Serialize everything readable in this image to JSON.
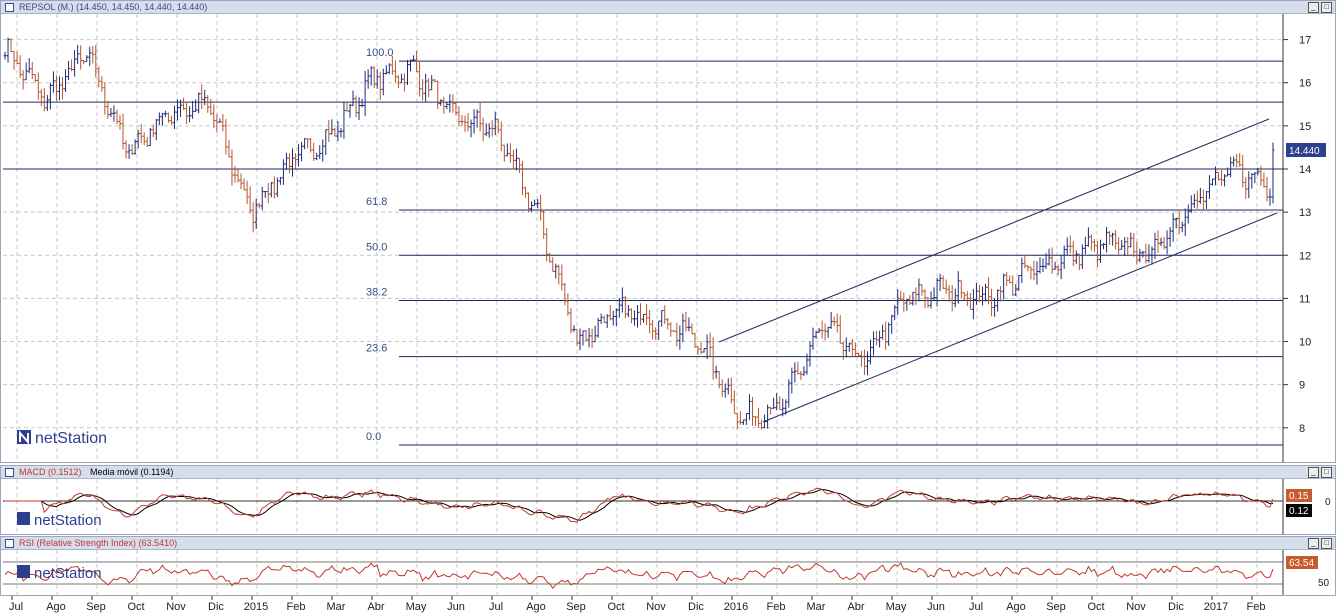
{
  "main_panel": {
    "title": "REPSOL (M.) (14.450, 14.450, 14.440, 14.440)",
    "last_price_label": "14.440",
    "watermark": "netStation",
    "y_ticks": [
      "17",
      "16",
      "15",
      "14",
      "13",
      "12",
      "11",
      "10",
      "9",
      "8"
    ],
    "fib_labels": [
      "100.0",
      "61.8",
      "50.0",
      "38.2",
      "23.6",
      "0.0"
    ]
  },
  "macd_panel": {
    "title_prefix": "MACD (0.1512)",
    "title_suffix": "Media móvil (0.1194)",
    "value_macd": "0.15",
    "value_signal": "0.12",
    "y_tick": "0",
    "watermark": "netStation"
  },
  "rsi_panel": {
    "title": "RSI (Relative Strength Index) (63.5410)",
    "value": "63.54",
    "y_tick": "50",
    "watermark": "netStation"
  },
  "x_axis": {
    "labels": [
      "Jul",
      "Ago",
      "Sep",
      "Oct",
      "Nov",
      "Dic",
      "2015",
      "Feb",
      "Mar",
      "Abr",
      "May",
      "Jun",
      "Jul",
      "Ago",
      "Sep",
      "Oct",
      "Nov",
      "Dic",
      "2016",
      "Feb",
      "Mar",
      "Abr",
      "May",
      "Jun",
      "Jul",
      "Ago",
      "Sep",
      "Oct",
      "Nov",
      "Dic",
      "2017",
      "Feb"
    ]
  },
  "colors": {
    "background": "#ffffff",
    "grid": "#c8c8c8",
    "candle": "#1f2a7a",
    "fib_line": "#1f2a5a",
    "macd_line": "#c0392b",
    "signal_line": "#000000",
    "rsi_line": "#c0392b",
    "price_tag": "#2e3f8f",
    "title_bar": "#d6ddeb"
  },
  "chart_data": [
    {
      "type": "line",
      "title": "REPSOL (M.) (14.450, 14.450, 14.440, 14.440)",
      "xlabel": "",
      "ylabel": "",
      "ylim": [
        7.3,
        17.5
      ],
      "x": [
        "Jul",
        "Ago",
        "Sep",
        "Oct",
        "Nov",
        "Dic",
        "2015",
        "Feb",
        "Mar",
        "Abr",
        "May",
        "Jun",
        "Jul",
        "Ago",
        "Sep",
        "Oct",
        "Nov",
        "Dic",
        "2016",
        "Feb",
        "Mar",
        "Abr",
        "May",
        "Jun",
        "Jul",
        "Ago",
        "Sep",
        "Oct",
        "Nov",
        "Dic",
        "2017",
        "Feb"
      ],
      "series": [
        {
          "values": [
            16.8,
            15.6,
            16.7,
            14.4,
            15.3,
            15.5,
            13.0,
            14.2,
            14.8,
            16.1,
            16.3,
            15.2,
            14.9,
            13.0,
            10.0,
            10.7,
            10.5,
            10.0,
            8.2,
            8.5,
            10.4,
            9.5,
            11.0,
            11.2,
            11.0,
            11.6,
            12.0,
            12.3,
            12.0,
            13.2,
            14.0,
            13.6
          ]
        }
      ],
      "fibonacci_levels": [
        {
          "label": "100.0",
          "value": 16.5
        },
        {
          "label": "61.8",
          "value": 13.05
        },
        {
          "label": "50.0",
          "value": 12.0
        },
        {
          "label": "38.2",
          "value": 10.95
        },
        {
          "label": "23.6",
          "value": 9.65
        },
        {
          "label": "0.0",
          "value": 7.6
        }
      ],
      "horizontal_levels": [
        15.55,
        14.0
      ],
      "last_value": 14.44,
      "grid": true
    },
    {
      "type": "line",
      "title": "MACD (0.1512)",
      "series": [
        {
          "name": "MACD (0.1512)",
          "last": 0.15
        },
        {
          "name": "Media móvil (0.1194)",
          "last": 0.12
        }
      ],
      "zero_line": 0
    },
    {
      "type": "line",
      "title": "RSI (Relative Strength Index) (63.5410)",
      "series": [
        {
          "name": "RSI (Relative Strength Index) (63.5410)",
          "last": 63.54
        }
      ],
      "reference": 50
    }
  ]
}
